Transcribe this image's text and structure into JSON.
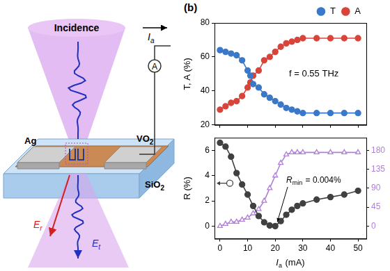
{
  "panel_label": "(b)",
  "diagram": {
    "incidence": "Incidence",
    "current": {
      "base": "I",
      "sub": "a"
    },
    "ammeter": "A",
    "electrode": "Ag",
    "film": {
      "base": "VO",
      "sub": "2"
    },
    "substrate": {
      "base": "SiO",
      "sub": "2"
    },
    "reflected": {
      "base": "E",
      "sub": "r"
    },
    "transmitted": {
      "base": "E",
      "sub": "t"
    }
  },
  "chart_data": [
    {
      "type": "line",
      "ylabel": "T, A (%)",
      "annotations": [
        {
          "text": "f = 0.55 THz"
        }
      ],
      "x": [
        0,
        2,
        4,
        6,
        8,
        10,
        11,
        12,
        14,
        16,
        18,
        20,
        22,
        24,
        26,
        28,
        30,
        35,
        40,
        45,
        50
      ],
      "series": [
        {
          "name": "T",
          "color": "#3a78c9",
          "marker": "circle",
          "values": [
            64,
            63,
            62,
            61,
            58,
            52,
            49,
            44,
            42,
            38,
            36,
            34,
            32,
            30,
            29,
            28,
            27,
            27,
            27,
            27,
            27
          ]
        },
        {
          "name": "A",
          "color": "#d9443a",
          "marker": "circle",
          "values": [
            29,
            31,
            33,
            34,
            37,
            42,
            45,
            49,
            52,
            58,
            60,
            63,
            66,
            68,
            69,
            70,
            71,
            71,
            71,
            71,
            71
          ]
        }
      ],
      "xlim": [
        -2,
        53
      ],
      "xticks": [
        0,
        10,
        20,
        30,
        40,
        50
      ],
      "ylim": [
        20,
        80
      ],
      "yticks": [
        20,
        40,
        60,
        80
      ],
      "grid": false,
      "legend": "top",
      "tick_labels": "y"
    },
    {
      "type": "line",
      "xlabel": {
        "base": "I",
        "sub": "a",
        "text": " (mA)"
      },
      "ylabel": "R (%)",
      "annotations": [
        {
          "base": "R",
          "sub": "min",
          "text": " = 0.004%"
        }
      ],
      "x": [
        0,
        2,
        4,
        6,
        8,
        10,
        12,
        14,
        16,
        18,
        20,
        22,
        24,
        26,
        28,
        30,
        35,
        40,
        45,
        50
      ],
      "series": [
        {
          "color": "#404040",
          "marker": "circle",
          "values": [
            6.6,
            6.3,
            5.5,
            4.2,
            3.3,
            2.5,
            1.6,
            0.8,
            0.3,
            0.05,
            0.004,
            0.4,
            0.9,
            1.3,
            1.6,
            1.8,
            2.1,
            2.3,
            2.5,
            2.8
          ]
        },
        {
          "color": "#b07fd8",
          "marker": "triangle-open",
          "axis": "y2",
          "values": [
            0,
            5,
            10,
            10,
            15,
            20,
            30,
            40,
            60,
            90,
            120,
            150,
            170,
            175,
            175,
            175,
            175,
            175,
            175,
            175
          ]
        }
      ],
      "xlim": [
        -2,
        53
      ],
      "xticks": [
        0,
        10,
        20,
        30,
        40,
        50
      ],
      "ylim": [
        -1,
        7
      ],
      "yticks": [
        0,
        2,
        4,
        6
      ],
      "y2lim": [
        -30,
        210
      ],
      "y2ticks": [
        0,
        45,
        90,
        135,
        180
      ],
      "grid": false
    }
  ]
}
